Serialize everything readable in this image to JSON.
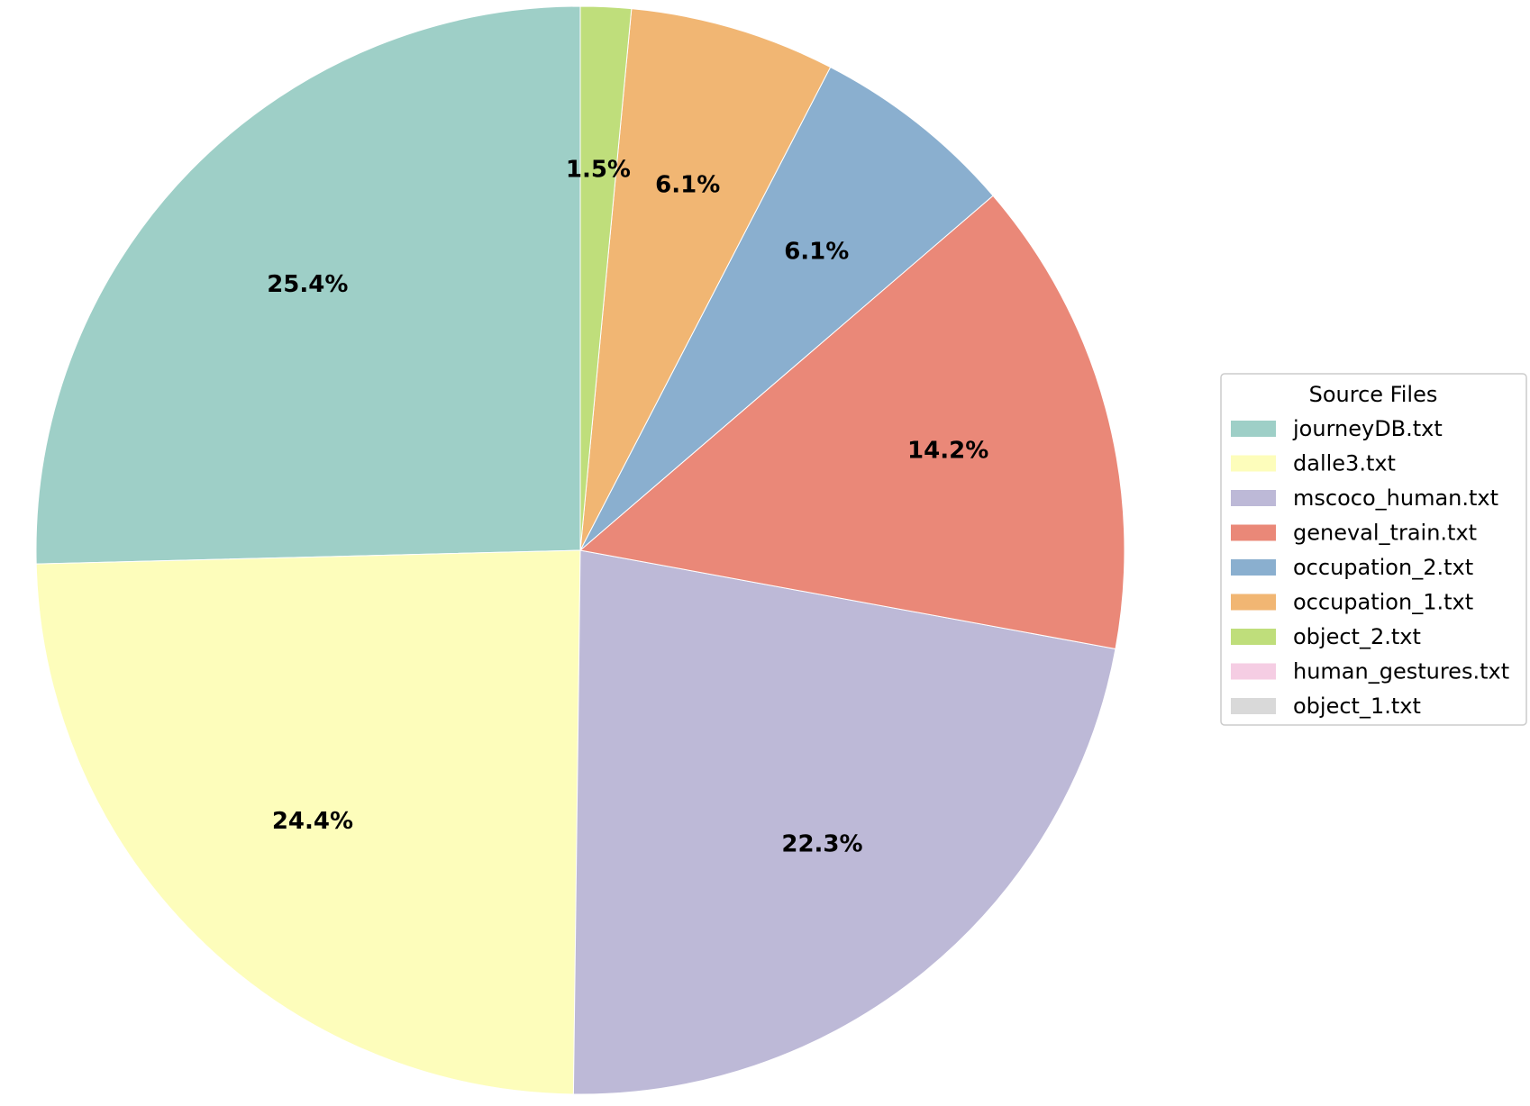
{
  "chart_data": {
    "type": "pie",
    "title": "",
    "start_angle_deg": 90,
    "direction": "counterclockwise",
    "slices": [
      {
        "label": "journeyDB.txt",
        "value": 25.4,
        "pct_text": "25.4%",
        "color": "#9ecfc7"
      },
      {
        "label": "dalle3.txt",
        "value": 24.4,
        "pct_text": "24.4%",
        "color": "#fdfdbb"
      },
      {
        "label": "mscoco_human.txt",
        "value": 22.3,
        "pct_text": "22.3%",
        "color": "#bdb9d7"
      },
      {
        "label": "geneval_train.txt",
        "value": 14.2,
        "pct_text": "14.2%",
        "color": "#ea8878"
      },
      {
        "label": "occupation_2.txt",
        "value": 6.1,
        "pct_text": "6.1%",
        "color": "#8aafcf"
      },
      {
        "label": "occupation_1.txt",
        "value": 6.1,
        "pct_text": "6.1%",
        "color": "#f1b673"
      },
      {
        "label": "object_2.txt",
        "value": 1.5,
        "pct_text": "1.5%",
        "color": "#bfde7b"
      },
      {
        "label": "human_gestures.txt",
        "value": 0.0,
        "pct_text": "",
        "color": "#f5cde3"
      },
      {
        "label": "object_1.txt",
        "value": 0.0,
        "pct_text": "",
        "color": "#d9d9d9"
      }
    ],
    "legend": {
      "title": "Source Files",
      "placement": "right"
    }
  }
}
